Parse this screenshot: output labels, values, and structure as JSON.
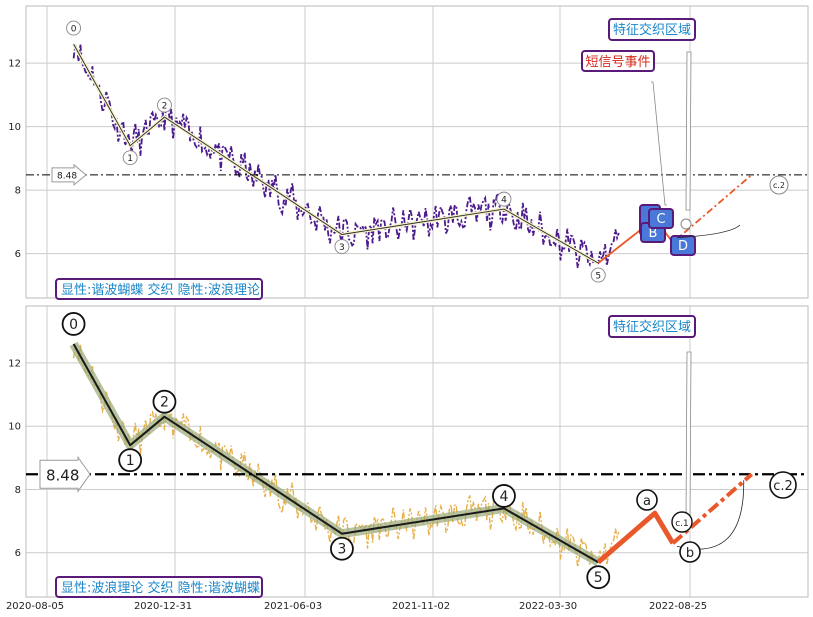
{
  "colors": {
    "price_top": "#4b1a8c",
    "price_bottom": "#e8b04a",
    "wave_line": "#1a1a1a",
    "wave_glow": "#9aaa78",
    "forecast": "#e8582a",
    "box_border": "#5a1a7a",
    "box_text": "#1a86c8",
    "alert_text": "#d4281c",
    "pattern_fill": "#4a78d8"
  },
  "chart_data": [
    {
      "type": "line",
      "panel": "top",
      "ylim": [
        4.6,
        13.8
      ],
      "y_ticks": [
        "6",
        "8",
        "10",
        "12"
      ],
      "x_ticks": [
        "2020-08-05",
        "2020-12-31",
        "2021-06-03",
        "2021-11-02",
        "2022-03-30",
        "2022-08-25"
      ],
      "hline": {
        "value": 8.48,
        "label": "8.48"
      },
      "wave_points": [
        {
          "label": "0",
          "x": "2020-09-05",
          "y": 12.6
        },
        {
          "label": "1",
          "x": "2020-11-10",
          "y": 9.4
        },
        {
          "label": "2",
          "x": "2020-12-20",
          "y": 10.3
        },
        {
          "label": "3",
          "x": "2021-07-15",
          "y": 6.6
        },
        {
          "label": "4",
          "x": "2022-01-20",
          "y": 7.4
        },
        {
          "label": "5",
          "x": "2022-05-10",
          "y": 5.7
        }
      ],
      "forecast": [
        {
          "x": "2022-05-10",
          "y": 5.7
        },
        {
          "x": "2022-07-15",
          "y": 7.1
        },
        {
          "x": "2022-08-05",
          "y": 6.35
        },
        {
          "x": "2022-11-05",
          "y": 8.48
        }
      ],
      "pattern_labels": [
        "B",
        "C",
        "D"
      ],
      "forecast_label": "c.2",
      "annotation_feature": "特征交织区域",
      "annotation_sms": "短信号事件",
      "legend_text": "显性:谐波蝴蝶 交织 隐性:波浪理论"
    },
    {
      "type": "line",
      "panel": "bottom",
      "ylim": [
        4.6,
        13.8
      ],
      "y_ticks": [
        "6",
        "8",
        "10",
        "12"
      ],
      "x_ticks": [
        "2020-08-05",
        "2020-12-31",
        "2021-06-03",
        "2021-11-02",
        "2022-03-30",
        "2022-08-25"
      ],
      "hline": {
        "value": 8.48,
        "label": "8.48"
      },
      "wave_points": [
        {
          "label": "0",
          "x": "2020-09-05",
          "y": 12.6
        },
        {
          "label": "1",
          "x": "2020-11-10",
          "y": 9.4
        },
        {
          "label": "2",
          "x": "2020-12-20",
          "y": 10.3
        },
        {
          "label": "3",
          "x": "2021-07-15",
          "y": 6.6
        },
        {
          "label": "4",
          "x": "2022-01-20",
          "y": 7.4
        },
        {
          "label": "5",
          "x": "2022-05-10",
          "y": 5.7
        }
      ],
      "abc_points": [
        {
          "label": "a",
          "x": "2022-07-15",
          "y": 7.25
        },
        {
          "label": "b",
          "x": "2022-08-05",
          "y": 6.3
        },
        {
          "label": "c.2",
          "x": "2022-11-05",
          "y": 8.48
        }
      ],
      "forecast_label": "c.1",
      "annotation_feature": "特征交织区域",
      "legend_text": "显性:波浪理论 交织 隐性:谐波蝴蝶"
    }
  ]
}
